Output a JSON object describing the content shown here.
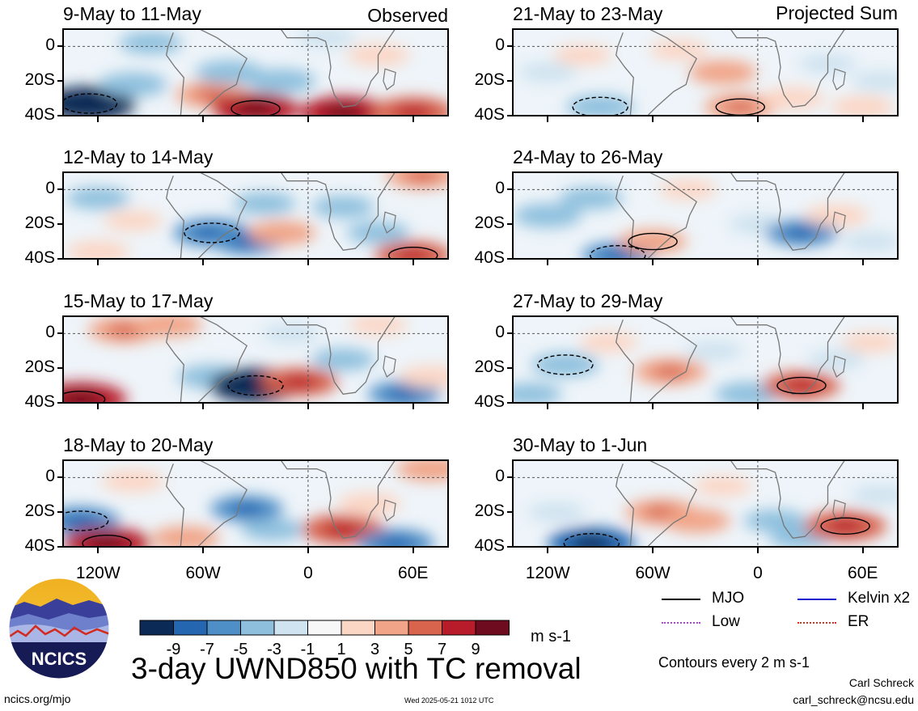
{
  "figure": {
    "main_title": "3-day UWND850 with TC removal",
    "units": "m s-1",
    "contour_note": "Contours every 2 m s-1",
    "website": "ncics.org/mjo",
    "timestamp": "Wed 2025-05-21 1012 UTC",
    "author": "Carl Schreck",
    "email": "carl_schreck@ncsu.edu",
    "logo_text": "NCICS"
  },
  "column_labels": {
    "left": "Observed",
    "right": "Projected Sum"
  },
  "legend": [
    {
      "label": "MJO",
      "color": "#000000",
      "style": "solid"
    },
    {
      "label": "Kelvin x2",
      "color": "#1a1acc",
      "style": "solid"
    },
    {
      "label": "Low",
      "color": "#b040d8",
      "style": "dotted"
    },
    {
      "label": "ER",
      "color": "#d83020",
      "style": "dotted"
    }
  ],
  "colorbar": {
    "colors": [
      "#0b2a55",
      "#2466b0",
      "#4f8fc7",
      "#8ec0de",
      "#cfe3f0",
      "#f7f7f7",
      "#fcd6c4",
      "#f1a487",
      "#d8644e",
      "#b81c2a",
      "#6e0b1e"
    ],
    "tick_labels": [
      "-9",
      "-7",
      "-5",
      "-3",
      "-1",
      "1",
      "3",
      "5",
      "7",
      "9"
    ]
  },
  "axes": {
    "y_ticks": [
      "0",
      "20S",
      "40S"
    ],
    "x_ticks": [
      "120W",
      "60W",
      "0",
      "60E"
    ]
  },
  "chart_data": {
    "type": "heatmap",
    "variable": "850-hPa zonal wind anomaly",
    "units": "m s-1",
    "lon_range": [
      -140,
      80
    ],
    "lat_range": [
      -40,
      10
    ],
    "x_ticks": [
      -120,
      -60,
      0,
      60
    ],
    "y_ticks": [
      0,
      -20,
      -40
    ],
    "color_levels": [
      -9,
      -7,
      -5,
      -3,
      -1,
      1,
      3,
      5,
      7,
      9
    ],
    "panels": [
      {
        "title": "9-May to 11-May",
        "column": "Observed",
        "anomalies": [
          {
            "lon": -125,
            "lat": -33,
            "value": -9
          },
          {
            "lon": -100,
            "lat": -22,
            "value": -4
          },
          {
            "lon": -90,
            "lat": 2,
            "value": -3
          },
          {
            "lon": -55,
            "lat": -28,
            "value": 5
          },
          {
            "lon": -30,
            "lat": -36,
            "value": 8
          },
          {
            "lon": -45,
            "lat": -15,
            "value": -4
          },
          {
            "lon": -15,
            "lat": -20,
            "value": -4
          },
          {
            "lon": 20,
            "lat": -38,
            "value": 8
          },
          {
            "lon": 60,
            "lat": -38,
            "value": 7
          },
          {
            "lon": 40,
            "lat": -5,
            "value": 3
          },
          {
            "lon": 10,
            "lat": 5,
            "value": -2
          }
        ]
      },
      {
        "title": "12-May to 14-May",
        "column": "Observed",
        "anomalies": [
          {
            "lon": -120,
            "lat": -5,
            "value": -3
          },
          {
            "lon": -100,
            "lat": -18,
            "value": 2
          },
          {
            "lon": -55,
            "lat": -25,
            "value": -6
          },
          {
            "lon": -35,
            "lat": -30,
            "value": -5
          },
          {
            "lon": -15,
            "lat": -25,
            "value": 4
          },
          {
            "lon": -25,
            "lat": -8,
            "value": -3
          },
          {
            "lon": 20,
            "lat": -10,
            "value": -3
          },
          {
            "lon": 40,
            "lat": -25,
            "value": -3
          },
          {
            "lon": 60,
            "lat": -38,
            "value": 6
          },
          {
            "lon": 65,
            "lat": 8,
            "value": 5
          },
          {
            "lon": -120,
            "lat": -36,
            "value": 3
          }
        ]
      },
      {
        "title": "15-May to 17-May",
        "column": "Observed",
        "anomalies": [
          {
            "lon": -130,
            "lat": -38,
            "value": 9
          },
          {
            "lon": -105,
            "lat": 2,
            "value": 5
          },
          {
            "lon": -80,
            "lat": 5,
            "value": 4
          },
          {
            "lon": -55,
            "lat": -25,
            "value": -4
          },
          {
            "lon": -30,
            "lat": -30,
            "value": -9
          },
          {
            "lon": -5,
            "lat": -28,
            "value": 6
          },
          {
            "lon": -10,
            "lat": 0,
            "value": -2
          },
          {
            "lon": 20,
            "lat": -15,
            "value": -3
          },
          {
            "lon": 55,
            "lat": -35,
            "value": -5
          },
          {
            "lon": 70,
            "lat": -25,
            "value": 3
          },
          {
            "lon": 40,
            "lat": 5,
            "value": 2
          }
        ]
      },
      {
        "title": "18-May to 20-May",
        "column": "Observed",
        "anomalies": [
          {
            "lon": -130,
            "lat": -25,
            "value": -6
          },
          {
            "lon": -115,
            "lat": -38,
            "value": 8
          },
          {
            "lon": -100,
            "lat": -2,
            "value": 3
          },
          {
            "lon": -70,
            "lat": -35,
            "value": 4
          },
          {
            "lon": -35,
            "lat": -18,
            "value": -5
          },
          {
            "lon": -20,
            "lat": -30,
            "value": -3
          },
          {
            "lon": 20,
            "lat": -30,
            "value": 7
          },
          {
            "lon": 35,
            "lat": -15,
            "value": 3
          },
          {
            "lon": 50,
            "lat": -38,
            "value": -6
          },
          {
            "lon": 70,
            "lat": 5,
            "value": 4
          }
        ]
      },
      {
        "title": "21-May to 23-May",
        "column": "Projected Sum",
        "anomalies": [
          {
            "lon": -120,
            "lat": -15,
            "value": -2
          },
          {
            "lon": -100,
            "lat": -5,
            "value": 2
          },
          {
            "lon": -90,
            "lat": -35,
            "value": -4
          },
          {
            "lon": -45,
            "lat": -2,
            "value": 2
          },
          {
            "lon": -20,
            "lat": -15,
            "value": 4
          },
          {
            "lon": -10,
            "lat": -35,
            "value": 5
          },
          {
            "lon": 20,
            "lat": -30,
            "value": 3
          },
          {
            "lon": 40,
            "lat": -10,
            "value": -2
          },
          {
            "lon": 60,
            "lat": -35,
            "value": 3
          },
          {
            "lon": 70,
            "lat": -20,
            "value": -2
          }
        ]
      },
      {
        "title": "24-May to 26-May",
        "column": "Projected Sum",
        "anomalies": [
          {
            "lon": -120,
            "lat": -15,
            "value": -4
          },
          {
            "lon": -95,
            "lat": -5,
            "value": -3
          },
          {
            "lon": -80,
            "lat": -38,
            "value": -5
          },
          {
            "lon": -60,
            "lat": -30,
            "value": 4
          },
          {
            "lon": -40,
            "lat": 0,
            "value": 2
          },
          {
            "lon": 0,
            "lat": -20,
            "value": -2
          },
          {
            "lon": 25,
            "lat": -25,
            "value": -5
          },
          {
            "lon": 45,
            "lat": -15,
            "value": 3
          },
          {
            "lon": 65,
            "lat": -30,
            "value": -2
          }
        ]
      },
      {
        "title": "27-May to 29-May",
        "column": "Projected Sum",
        "anomalies": [
          {
            "lon": -110,
            "lat": -18,
            "value": -4
          },
          {
            "lon": -130,
            "lat": -35,
            "value": -3
          },
          {
            "lon": -85,
            "lat": -5,
            "value": 2
          },
          {
            "lon": -50,
            "lat": -22,
            "value": 5
          },
          {
            "lon": -25,
            "lat": -10,
            "value": -2
          },
          {
            "lon": -5,
            "lat": -35,
            "value": -4
          },
          {
            "lon": 25,
            "lat": -30,
            "value": 6
          },
          {
            "lon": 45,
            "lat": -15,
            "value": -2
          },
          {
            "lon": 65,
            "lat": -5,
            "value": 2
          }
        ]
      },
      {
        "title": "30-May to 1-Jun",
        "column": "Projected Sum",
        "anomalies": [
          {
            "lon": -95,
            "lat": -38,
            "value": -8
          },
          {
            "lon": -115,
            "lat": -20,
            "value": -2
          },
          {
            "lon": -55,
            "lat": -20,
            "value": 5
          },
          {
            "lon": -35,
            "lat": -25,
            "value": 4
          },
          {
            "lon": -20,
            "lat": -5,
            "value": 2
          },
          {
            "lon": 10,
            "lat": -25,
            "value": -3
          },
          {
            "lon": 25,
            "lat": -35,
            "value": -3
          },
          {
            "lon": 50,
            "lat": -28,
            "value": 7
          },
          {
            "lon": 70,
            "lat": -10,
            "value": -2
          }
        ]
      }
    ]
  }
}
